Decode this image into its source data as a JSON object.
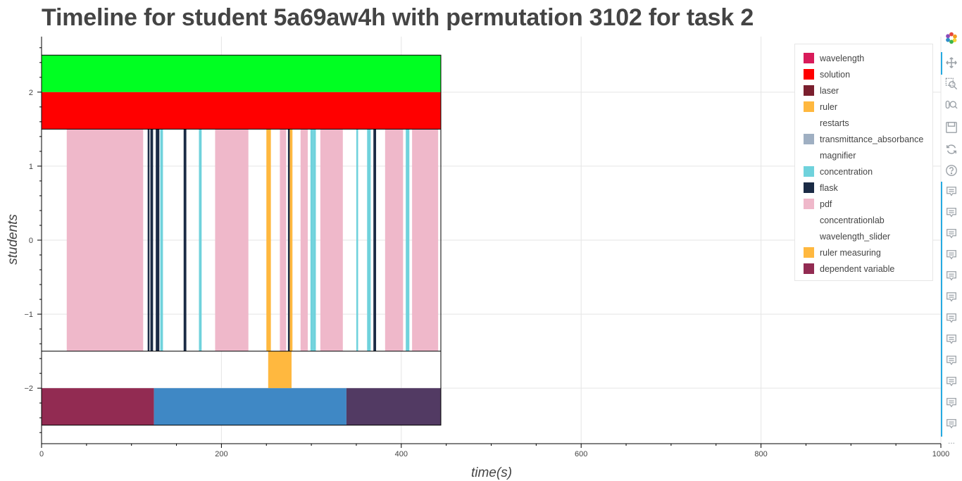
{
  "title": "Timeline for student 5a69aw4h with permutation 3102 for task 2",
  "chart_data": {
    "type": "timeline",
    "title": "Timeline for student 5a69aw4h with permutation 3102 for task 2",
    "xlabel": "time(s)",
    "ylabel": "students",
    "xlim": [
      0,
      1000
    ],
    "ylim": [
      -2.75,
      2.75
    ],
    "x_ticks": [
      0,
      200,
      400,
      600,
      800,
      1000
    ],
    "y_ticks": [
      -2,
      -1,
      0,
      1,
      2
    ],
    "grid": true,
    "legend_position": "top-right",
    "legend": [
      {
        "label": "wavelength",
        "color": "#d81b5a"
      },
      {
        "label": "solution",
        "color": "#ff0000"
      },
      {
        "label": "laser",
        "color": "#7a1f2e"
      },
      {
        "label": "ruler",
        "color": "#ffb83f"
      },
      {
        "label": "restarts",
        "color": "#ffffff"
      },
      {
        "label": "transmittance_absorbance",
        "color": "#9fafc2"
      },
      {
        "label": "magnifier",
        "color": "#ffffff"
      },
      {
        "label": "concentration",
        "color": "#6fd2dc"
      },
      {
        "label": "flask",
        "color": "#1b2b45"
      },
      {
        "label": "pdf",
        "color": "#efb8ca"
      },
      {
        "label": "concentrationlab",
        "color": "#ffffff"
      },
      {
        "label": "wavelength_slider",
        "color": "#ffffff"
      },
      {
        "label": "ruler measuring",
        "color": "#ffb83f"
      },
      {
        "label": "dependent variable",
        "color": "#922b52"
      }
    ],
    "bars": [
      {
        "x0": 0,
        "x1": 444,
        "y0": 2.0,
        "y1": 2.5,
        "color": "#00ff22"
      },
      {
        "x0": 0,
        "x1": 444,
        "y0": 1.5,
        "y1": 2.0,
        "color": "#ff0000"
      },
      {
        "x0": 28,
        "x1": 113,
        "y0": -1.5,
        "y1": 1.5,
        "color": "#efb8ca"
      },
      {
        "x0": 118,
        "x1": 120,
        "y0": -1.5,
        "y1": 1.5,
        "color": "#1b2b45"
      },
      {
        "x0": 121,
        "x1": 124,
        "y0": -1.5,
        "y1": 1.5,
        "color": "#1b2b45"
      },
      {
        "x0": 127,
        "x1": 131,
        "y0": -1.5,
        "y1": 1.5,
        "color": "#1b2b45"
      },
      {
        "x0": 132,
        "x1": 135,
        "y0": -1.5,
        "y1": 1.5,
        "color": "#6fd2dc"
      },
      {
        "x0": 158,
        "x1": 161,
        "y0": -1.5,
        "y1": 1.5,
        "color": "#1b2b45"
      },
      {
        "x0": 175,
        "x1": 178,
        "y0": -1.5,
        "y1": 1.5,
        "color": "#6fd2dc"
      },
      {
        "x0": 193,
        "x1": 230,
        "y0": -1.5,
        "y1": 1.5,
        "color": "#efb8ca"
      },
      {
        "x0": 250,
        "x1": 255,
        "y0": -1.5,
        "y1": 1.5,
        "color": "#ffb83f"
      },
      {
        "x0": 265,
        "x1": 272,
        "y0": -1.5,
        "y1": 1.5,
        "color": "#efb8ca"
      },
      {
        "x0": 274,
        "x1": 276,
        "y0": -1.5,
        "y1": 1.5,
        "color": "#1b2b45"
      },
      {
        "x0": 276,
        "x1": 279,
        "y0": -1.5,
        "y1": 1.5,
        "color": "#ffb83f"
      },
      {
        "x0": 288,
        "x1": 296,
        "y0": -1.5,
        "y1": 1.5,
        "color": "#efb8ca"
      },
      {
        "x0": 299,
        "x1": 302,
        "y0": -1.5,
        "y1": 1.5,
        "color": "#6fd2dc"
      },
      {
        "x0": 302,
        "x1": 305,
        "y0": -1.5,
        "y1": 1.5,
        "color": "#6fd2dc"
      },
      {
        "x0": 310,
        "x1": 335,
        "y0": -1.5,
        "y1": 1.5,
        "color": "#efb8ca"
      },
      {
        "x0": 350,
        "x1": 352,
        "y0": -1.5,
        "y1": 1.5,
        "color": "#6fd2dc"
      },
      {
        "x0": 362,
        "x1": 366,
        "y0": -1.5,
        "y1": 1.5,
        "color": "#6fd2dc"
      },
      {
        "x0": 369,
        "x1": 372,
        "y0": -1.5,
        "y1": 1.5,
        "color": "#1b2b45"
      },
      {
        "x0": 382,
        "x1": 402,
        "y0": -1.5,
        "y1": 1.5,
        "color": "#efb8ca"
      },
      {
        "x0": 405,
        "x1": 409,
        "y0": -1.5,
        "y1": 1.5,
        "color": "#6fd2dc"
      },
      {
        "x0": 412,
        "x1": 441,
        "y0": -1.5,
        "y1": 1.5,
        "color": "#efb8ca"
      },
      {
        "x0": 252,
        "x1": 278,
        "y0": -2.0,
        "y1": -1.5,
        "color": "#ffb83f"
      },
      {
        "x0": 0,
        "x1": 125,
        "y0": -2.5,
        "y1": -2.0,
        "color": "#922b52"
      },
      {
        "x0": 125,
        "x1": 339,
        "y0": -2.5,
        "y1": -2.0,
        "color": "#3f88c5"
      },
      {
        "x0": 339,
        "x1": 444,
        "y0": -2.5,
        "y1": -2.0,
        "color": "#523a63"
      }
    ],
    "outline": {
      "x0": 0,
      "x1": 444,
      "y0": -2.5,
      "y1": 2.5
    }
  },
  "toolbar": {
    "icons": [
      "bokeh-logo-icon",
      "pan-icon",
      "box-zoom-icon",
      "wheel-zoom-icon",
      "save-icon",
      "reset-icon",
      "help-icon",
      "hover-icon",
      "hover-icon",
      "hover-icon",
      "hover-icon",
      "hover-icon",
      "hover-icon",
      "hover-icon",
      "hover-icon",
      "hover-icon",
      "hover-icon",
      "hover-icon",
      "hover-icon"
    ],
    "more": "..."
  }
}
